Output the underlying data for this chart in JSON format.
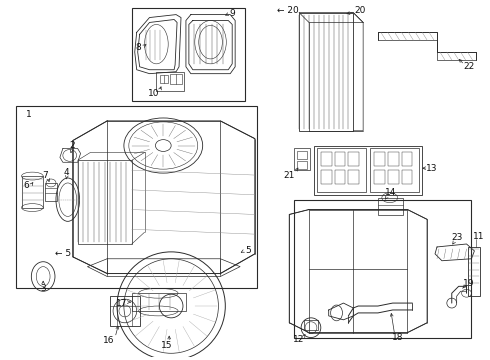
{
  "bg_color": "#ffffff",
  "lc": "#2a2a2a",
  "lw": 0.6,
  "fs": 6.5,
  "figsize": [
    4.9,
    3.6
  ],
  "dpi": 100
}
